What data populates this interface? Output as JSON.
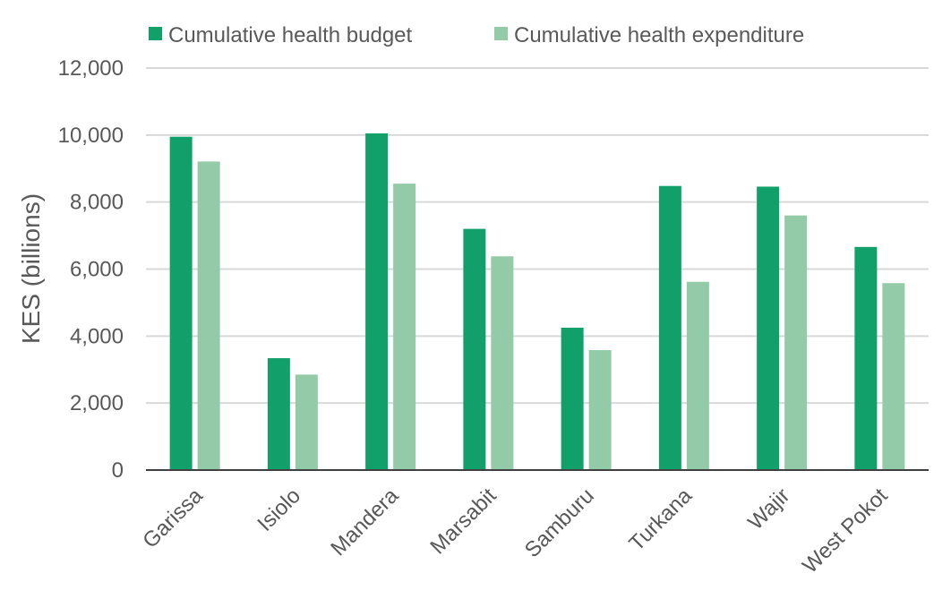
{
  "chart_data": {
    "type": "bar",
    "title": "",
    "xlabel": "",
    "ylabel": "KES (billions)",
    "ylim": [
      0,
      12000
    ],
    "yticks": [
      0,
      2000,
      4000,
      6000,
      8000,
      10000,
      12000
    ],
    "ytick_labels": [
      "0",
      "2,000",
      "4,000",
      "6,000",
      "8,000",
      "10,000",
      "12,000"
    ],
    "grid": true,
    "legend_position": "top-center",
    "categories": [
      "Garissa",
      "Isiolo",
      "Mandera",
      "Marsabit",
      "Samburu",
      "Turkana",
      "Wajir",
      "West Pokot"
    ],
    "series": [
      {
        "name": "Cumulative health budget",
        "color": "#12a06a",
        "values": [
          9950,
          3340,
          10050,
          7200,
          4250,
          8480,
          8460,
          6660
        ]
      },
      {
        "name": "Cumulative health expenditure",
        "color": "#93cba8",
        "values": [
          9210,
          2850,
          8550,
          6380,
          3580,
          5620,
          7600,
          5580
        ]
      }
    ]
  }
}
